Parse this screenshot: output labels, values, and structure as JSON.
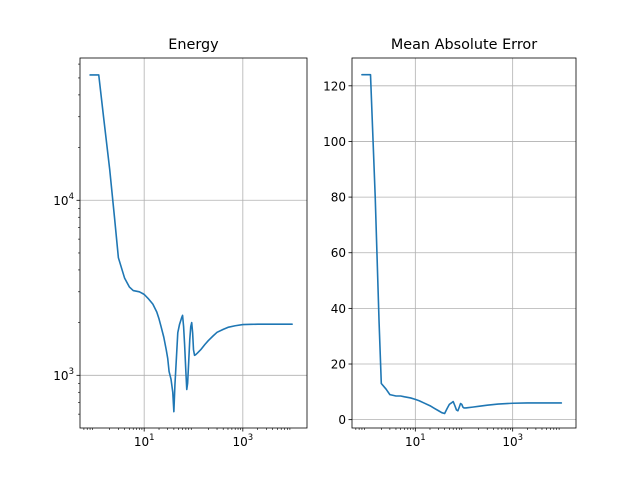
{
  "chart_data": [
    {
      "type": "line",
      "title": "Energy",
      "xlabel": "",
      "ylabel": "",
      "xscale": "log",
      "yscale": "log",
      "xlim": [
        0.5,
        20000
      ],
      "ylim": [
        500,
        65000
      ],
      "grid": true,
      "xticks": [
        10,
        1000
      ],
      "xtick_labels": [
        {
          "base": "10",
          "exp": "1"
        },
        {
          "base": "10",
          "exp": "3"
        }
      ],
      "yticks": [
        1000,
        10000
      ],
      "ytick_labels": [
        {
          "base": "10",
          "exp": "3"
        },
        {
          "base": "10",
          "exp": "4"
        }
      ],
      "series": [
        {
          "color": "#1f77b4",
          "x": [
            0.8,
            1.0,
            1.2,
            1.5,
            2.0,
            2.5,
            3.0,
            4.0,
            5.0,
            6.0,
            8.0,
            10,
            12,
            15,
            18,
            20,
            22,
            25,
            28,
            30,
            32,
            35,
            38,
            40,
            42,
            45,
            48,
            50,
            52,
            55,
            58,
            60,
            63,
            66,
            70,
            73,
            76,
            80,
            84,
            88,
            92,
            96,
            100,
            105,
            110,
            120,
            140,
            170,
            200,
            250,
            300,
            400,
            500,
            700,
            1000,
            1500,
            2000,
            3000,
            5000,
            8000,
            10000
          ],
          "y": [
            52000,
            52000,
            52000,
            30000,
            15000,
            8000,
            4700,
            3600,
            3200,
            3050,
            3000,
            2900,
            2750,
            2550,
            2300,
            2100,
            1900,
            1650,
            1400,
            1250,
            1050,
            950,
            800,
            620,
            880,
            1250,
            1750,
            1850,
            1950,
            2050,
            2150,
            2200,
            1900,
            1500,
            1050,
            830,
            900,
            1200,
            1600,
            1900,
            2000,
            1750,
            1400,
            1300,
            1310,
            1340,
            1400,
            1500,
            1580,
            1680,
            1760,
            1830,
            1880,
            1920,
            1950,
            1955,
            1960,
            1960,
            1960,
            1960,
            1960
          ]
        }
      ]
    },
    {
      "type": "line",
      "title": "Mean Absolute Error",
      "xlabel": "",
      "ylabel": "",
      "xscale": "log",
      "yscale": "linear",
      "xlim": [
        0.5,
        20000
      ],
      "ylim": [
        -3,
        130
      ],
      "grid": true,
      "xticks": [
        10,
        1000
      ],
      "xtick_labels": [
        {
          "base": "10",
          "exp": "1"
        },
        {
          "base": "10",
          "exp": "3"
        }
      ],
      "yticks": [
        0,
        20,
        40,
        60,
        80,
        100,
        120
      ],
      "ytick_labels": [
        "0",
        "20",
        "40",
        "60",
        "80",
        "100",
        "120"
      ],
      "series": [
        {
          "color": "#1f77b4",
          "x": [
            0.8,
            1.0,
            1.2,
            1.5,
            1.8,
            2.0,
            2.5,
            3.0,
            4.0,
            5.0,
            6.0,
            8.0,
            10,
            12,
            15,
            20,
            25,
            30,
            35,
            40,
            45,
            50,
            55,
            60,
            65,
            70,
            75,
            80,
            85,
            90,
            95,
            100,
            110,
            120,
            150,
            200,
            300,
            500,
            1000,
            2000,
            5000,
            10000
          ],
          "y": [
            124,
            124,
            124,
            80,
            35,
            13,
            11,
            9,
            8.5,
            8.5,
            8.2,
            7.8,
            7.3,
            6.8,
            6.0,
            5.0,
            4.0,
            3.2,
            2.5,
            2.2,
            4.0,
            5.5,
            6.0,
            6.5,
            5.0,
            3.5,
            3.2,
            4.5,
            5.8,
            5.5,
            4.5,
            4.2,
            4.2,
            4.3,
            4.5,
            4.8,
            5.2,
            5.6,
            5.9,
            6.0,
            6.0,
            6.0
          ]
        }
      ]
    }
  ]
}
